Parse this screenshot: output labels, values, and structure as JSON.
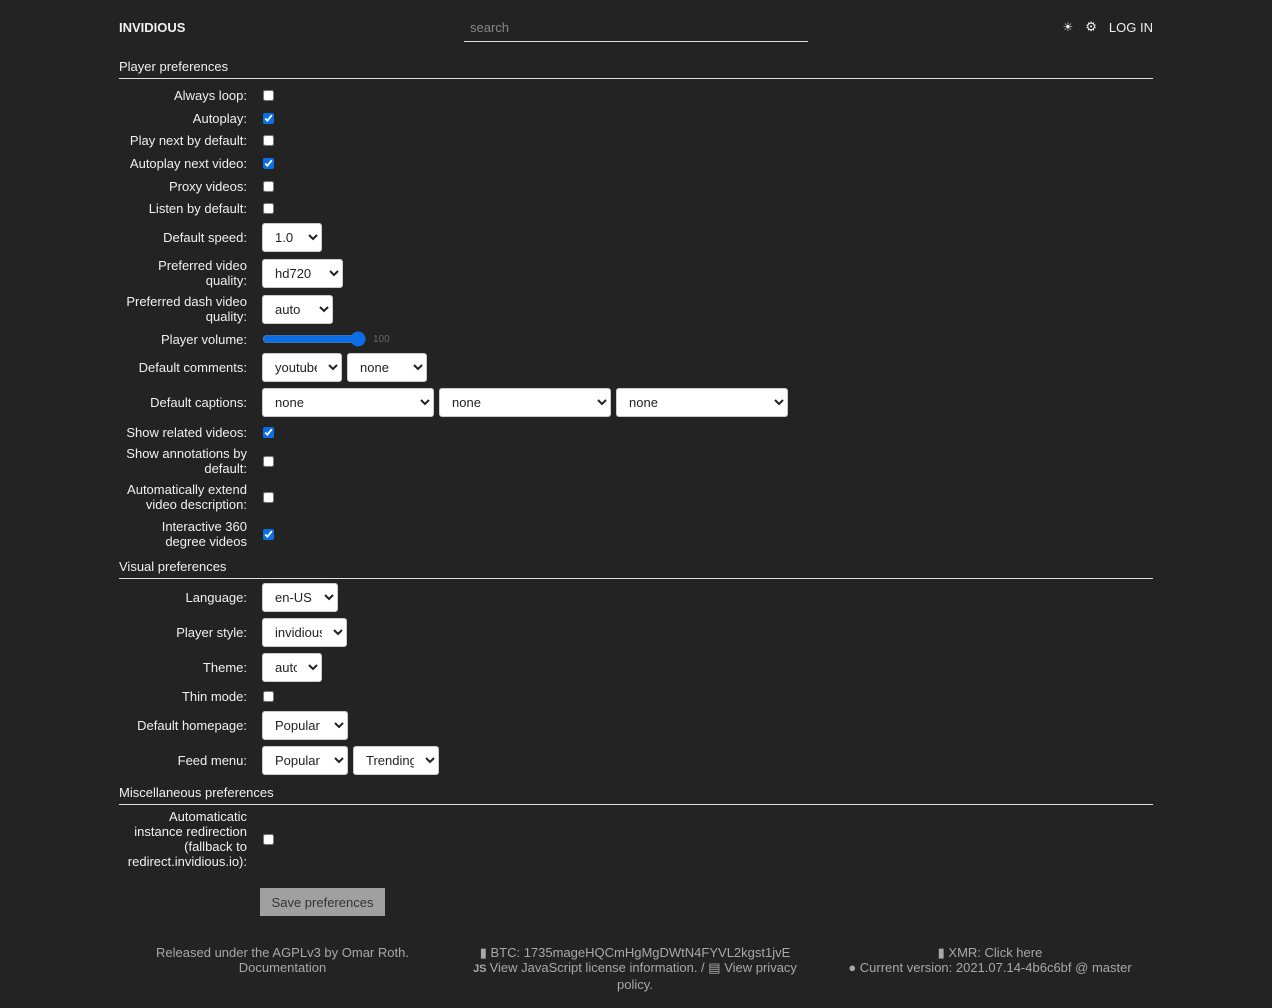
{
  "header": {
    "logo": "INVIDIOUS",
    "search_placeholder": "search",
    "theme_icon": "sun-icon",
    "settings_icon": "gear-icon",
    "login": "LOG IN"
  },
  "player": {
    "title": "Player preferences",
    "always_loop": {
      "label": "Always loop:",
      "checked": false
    },
    "autoplay": {
      "label": "Autoplay:",
      "checked": true
    },
    "play_next": {
      "label": "Play next by default:",
      "checked": false
    },
    "autoplay_next": {
      "label": "Autoplay next video:",
      "checked": true
    },
    "proxy": {
      "label": "Proxy videos:",
      "checked": false
    },
    "listen": {
      "label": "Listen by default:",
      "checked": false
    },
    "speed": {
      "label": "Default speed:",
      "value": "1.0"
    },
    "quality": {
      "label": "Preferred video quality:",
      "value": "hd720"
    },
    "dash_quality": {
      "label": "Preferred dash video quality:",
      "value": "auto"
    },
    "volume": {
      "label": "Player volume:",
      "value": "100"
    },
    "comments": {
      "label": "Default comments:",
      "values": [
        "youtube",
        "none"
      ]
    },
    "captions": {
      "label": "Default captions:",
      "values": [
        "none",
        "none",
        "none"
      ]
    },
    "related": {
      "label": "Show related videos:",
      "checked": true
    },
    "annotations": {
      "label": "Show annotations by default:",
      "checked": false
    },
    "extend_desc": {
      "label": "Automatically extend video description:",
      "checked": false
    },
    "vr360": {
      "label": "Interactive 360 degree videos",
      "checked": true
    }
  },
  "visual": {
    "title": "Visual preferences",
    "language": {
      "label": "Language:",
      "value": "en-US"
    },
    "player_style": {
      "label": "Player style:",
      "value": "invidious"
    },
    "theme": {
      "label": "Theme:",
      "value": "auto"
    },
    "thin_mode": {
      "label": "Thin mode:",
      "checked": false
    },
    "homepage": {
      "label": "Default homepage:",
      "value": "Popular"
    },
    "feed_menu": {
      "label": "Feed menu:",
      "values": [
        "Popular",
        "Trending"
      ]
    }
  },
  "misc": {
    "title": "Miscellaneous preferences",
    "redirect": {
      "label": "Automaticatic instance redirection (fallback to redirect.invidious.io):",
      "checked": false
    }
  },
  "save_label": "Save preferences",
  "footer": {
    "license": "Released under the AGPLv3 by Omar Roth.",
    "docs": "Documentation",
    "btc": "BTC: 1735mageHQCmHgMgDWtN4FYVL2kgst1jvE",
    "js_license": "View JavaScript license information.",
    "privacy": "View privacy policy.",
    "xmr": "XMR: Click here",
    "version": "Current version: 2021.07.14-4b6c6bf @ master"
  }
}
